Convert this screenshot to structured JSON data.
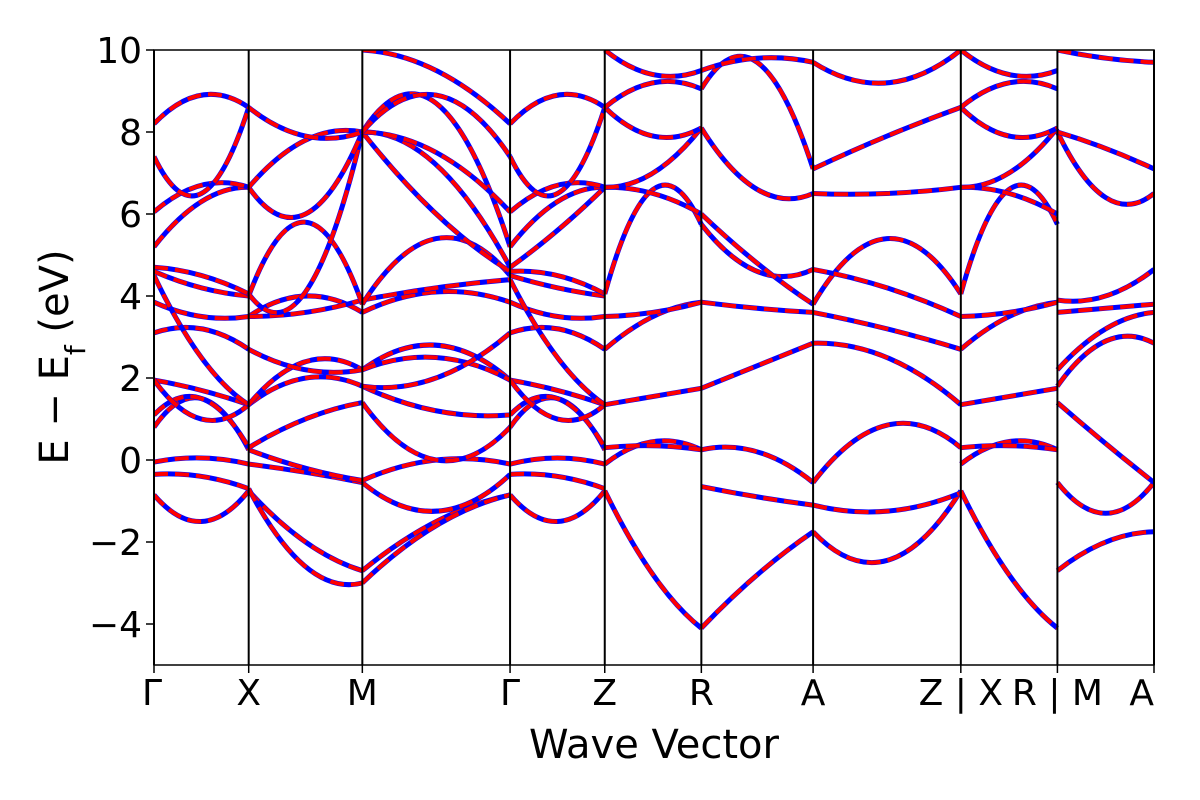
{
  "chart_data": {
    "type": "line",
    "xlabel": "Wave Vector",
    "ylabel": "E − E",
    "ylabel_sub": "f",
    "ylabel_unit": " (eV)",
    "ylim": [
      -5,
      10
    ],
    "yticks": [
      -4,
      -2,
      0,
      2,
      4,
      6,
      8,
      10
    ],
    "ytick_labels": [
      "−4",
      "−2",
      "0",
      "2",
      "4",
      "6",
      "8",
      "10"
    ],
    "kpoints": [
      {
        "label": "Γ",
        "x": 0.0
      },
      {
        "label": "X",
        "x": 0.5
      },
      {
        "label": "M",
        "x": 1.1
      },
      {
        "label": "Γ",
        "x": 1.88
      },
      {
        "label": "Z",
        "x": 2.38
      },
      {
        "label": "R",
        "x": 2.89
      },
      {
        "label": "A",
        "x": 3.48
      },
      {
        "label": "Z | X",
        "x": 4.26
      },
      {
        "label": "R | M",
        "x": 4.77
      },
      {
        "label": "A",
        "x": 5.28
      }
    ],
    "grid": false,
    "legend": "none",
    "series_style": [
      {
        "color": "#0000ff",
        "dash": "solid"
      },
      {
        "color": "#ff0000",
        "dash": "dashed"
      }
    ],
    "segments": [
      {
        "x0": 0.0,
        "x1": 0.5,
        "bands": [
          [
            -0.85,
            -1.5,
            -0.75
          ],
          [
            -0.35,
            -0.4,
            -0.7
          ],
          [
            -0.05,
            0.05,
            -0.1
          ],
          [
            0.8,
            1.5,
            0.25
          ],
          [
            1.1,
            1.5,
            0.3
          ],
          [
            1.95,
            1.7,
            1.35
          ],
          [
            1.95,
            1.0,
            1.35
          ],
          [
            3.1,
            3.2,
            2.7
          ],
          [
            3.85,
            3.5,
            3.5
          ],
          [
            4.5,
            2.5,
            1.35
          ],
          [
            4.6,
            4.2,
            4.0
          ],
          [
            4.7,
            4.5,
            4.05
          ],
          [
            5.2,
            6.3,
            6.65
          ],
          [
            6.05,
            6.7,
            6.65
          ],
          [
            7.4,
            6.5,
            8.6
          ],
          [
            8.2,
            8.9,
            8.6
          ]
        ]
      },
      {
        "x0": 0.5,
        "x1": 1.1,
        "bands": [
          [
            -0.75,
            -2.0,
            -2.7
          ],
          [
            -0.7,
            -2.6,
            -3.0
          ],
          [
            -0.1,
            -0.3,
            -0.55
          ],
          [
            0.25,
            -0.2,
            -0.5
          ],
          [
            0.3,
            1.0,
            1.4
          ],
          [
            1.35,
            2.0,
            1.8
          ],
          [
            1.35,
            2.4,
            2.2
          ],
          [
            2.7,
            2.2,
            2.2
          ],
          [
            3.5,
            4.0,
            3.6
          ],
          [
            3.5,
            3.6,
            3.9
          ],
          [
            4.0,
            5.8,
            3.8
          ],
          [
            4.05,
            4.1,
            8.0
          ],
          [
            6.65,
            6.0,
            8.0
          ],
          [
            6.65,
            7.8,
            8.0
          ],
          [
            8.6,
            7.9,
            8.0
          ]
        ]
      },
      {
        "x0": 1.1,
        "x1": 1.88,
        "bands": [
          [
            -2.7,
            -1.5,
            -0.85
          ],
          [
            -3.0,
            -1.6,
            -0.85
          ],
          [
            -0.55,
            -1.25,
            -0.35
          ],
          [
            -0.5,
            0.0,
            -0.1
          ],
          [
            1.4,
            0.0,
            0.8
          ],
          [
            1.8,
            1.2,
            1.1
          ],
          [
            2.2,
            2.8,
            1.95
          ],
          [
            2.2,
            2.5,
            1.95
          ],
          [
            1.8,
            2.0,
            3.1
          ],
          [
            3.6,
            4.1,
            3.85
          ],
          [
            3.9,
            4.2,
            4.4
          ],
          [
            3.8,
            5.4,
            4.5
          ],
          [
            8.0,
            6.0,
            4.6
          ],
          [
            8.0,
            7.2,
            4.7
          ],
          [
            8.0,
            8.7,
            5.2
          ],
          [
            8.0,
            7.5,
            6.05
          ],
          [
            8.0,
            8.9,
            7.4
          ],
          [
            10.0,
            9.5,
            8.2
          ]
        ]
      },
      {
        "x0": 1.88,
        "x1": 2.38,
        "bands": [
          [
            -0.85,
            -1.5,
            -0.75
          ],
          [
            -0.35,
            -0.4,
            -0.7
          ],
          [
            -0.1,
            0.05,
            -0.1
          ],
          [
            0.8,
            1.5,
            0.25
          ],
          [
            1.1,
            1.5,
            0.3
          ],
          [
            1.95,
            1.7,
            1.35
          ],
          [
            1.95,
            1.0,
            1.35
          ],
          [
            3.1,
            3.2,
            2.7
          ],
          [
            3.85,
            3.5,
            3.5
          ],
          [
            4.4,
            2.5,
            1.35
          ],
          [
            4.5,
            4.2,
            4.0
          ],
          [
            4.6,
            4.5,
            4.05
          ],
          [
            4.7,
            5.6,
            6.65
          ],
          [
            5.2,
            6.3,
            6.65
          ],
          [
            6.05,
            6.7,
            6.65
          ],
          [
            7.4,
            6.5,
            8.6
          ],
          [
            8.2,
            8.9,
            8.6
          ]
        ]
      },
      {
        "x0": 2.38,
        "x1": 2.89,
        "bands": [
          [
            -0.75,
            -2.8,
            -4.1
          ],
          [
            -0.1,
            0.45,
            0.25
          ],
          [
            0.3,
            0.35,
            0.25
          ],
          [
            1.35,
            1.55,
            1.75
          ],
          [
            2.7,
            3.5,
            3.85
          ],
          [
            3.5,
            3.6,
            3.85
          ],
          [
            4.05,
            6.6,
            5.75
          ],
          [
            6.65,
            6.5,
            6.0
          ],
          [
            6.65,
            7.0,
            8.1
          ],
          [
            8.6,
            7.9,
            8.1
          ],
          [
            8.6,
            9.2,
            9.05
          ],
          [
            10.0,
            9.4,
            9.5
          ]
        ]
      },
      {
        "x0": 2.89,
        "x1": 3.48,
        "bands": [
          [
            -4.1,
            -2.8,
            -1.75
          ],
          [
            -0.65,
            -0.9,
            -1.1
          ],
          [
            0.25,
            0.2,
            -0.55
          ],
          [
            1.75,
            2.3,
            2.85
          ],
          [
            3.85,
            3.7,
            3.6
          ],
          [
            5.75,
            4.6,
            4.65
          ],
          [
            6.0,
            4.8,
            3.8
          ],
          [
            8.1,
            6.6,
            6.5
          ],
          [
            9.05,
            9.7,
            7.1
          ],
          [
            9.5,
            9.8,
            9.7
          ]
        ]
      },
      {
        "x0": 3.48,
        "x1": 4.26,
        "bands": [
          [
            -1.75,
            -2.45,
            -0.75
          ],
          [
            -1.1,
            -1.25,
            -0.8
          ],
          [
            -0.55,
            0.85,
            0.3
          ],
          [
            2.85,
            2.5,
            1.35
          ],
          [
            3.6,
            3.2,
            2.7
          ],
          [
            3.8,
            5.4,
            4.05
          ],
          [
            4.65,
            4.2,
            3.5
          ],
          [
            6.5,
            6.5,
            6.65
          ],
          [
            7.1,
            7.9,
            8.6
          ],
          [
            9.7,
            9.2,
            10.0
          ]
        ]
      },
      {
        "x0": 4.26,
        "x1": 4.77,
        "bands": [
          [
            -0.75,
            -2.8,
            -4.1
          ],
          [
            -0.1,
            0.45,
            0.25
          ],
          [
            0.3,
            0.35,
            0.25
          ],
          [
            1.35,
            1.55,
            1.75
          ],
          [
            2.7,
            3.5,
            3.85
          ],
          [
            3.5,
            3.6,
            3.85
          ],
          [
            4.05,
            6.6,
            5.75
          ],
          [
            6.65,
            6.5,
            6.0
          ],
          [
            6.65,
            7.0,
            8.1
          ],
          [
            8.6,
            7.9,
            8.1
          ],
          [
            8.6,
            9.2,
            9.05
          ],
          [
            10.0,
            9.4,
            9.5
          ]
        ]
      },
      {
        "x0": 4.77,
        "x1": 5.28,
        "bands": [
          [
            -2.7,
            -2.0,
            -1.75
          ],
          [
            -0.55,
            -1.3,
            -0.55
          ],
          [
            1.4,
            0.4,
            -0.55
          ],
          [
            1.8,
            2.9,
            2.85
          ],
          [
            2.2,
            3.2,
            3.6
          ],
          [
            3.6,
            3.7,
            3.8
          ],
          [
            3.9,
            4.0,
            4.65
          ],
          [
            8.0,
            6.4,
            6.5
          ],
          [
            8.0,
            7.6,
            7.1
          ],
          [
            10.0,
            9.8,
            9.7
          ]
        ]
      }
    ]
  }
}
